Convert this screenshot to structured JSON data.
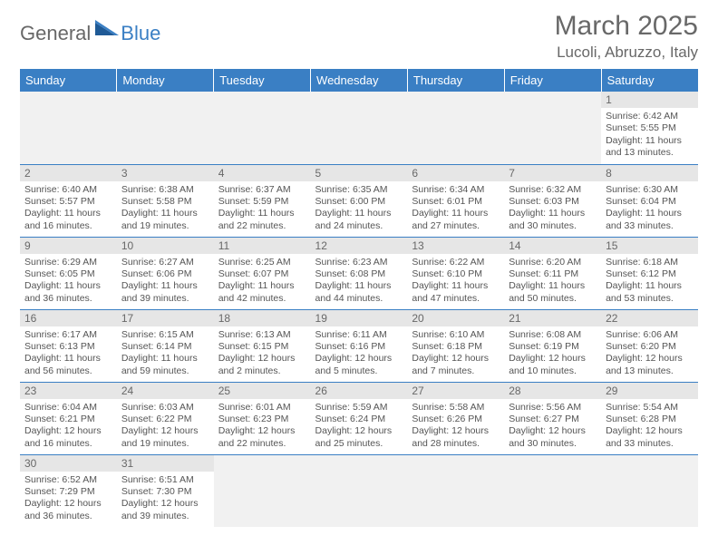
{
  "logo": {
    "general": "General",
    "blue": "Blue"
  },
  "title": "March 2025",
  "location": "Lucoli, Abruzzo, Italy",
  "colors": {
    "header_bg": "#3a7fc4",
    "daynum_bg": "#e6e6e6",
    "empty_bg": "#f1f1f1",
    "text_muted": "#686868"
  },
  "weekdays": [
    "Sunday",
    "Monday",
    "Tuesday",
    "Wednesday",
    "Thursday",
    "Friday",
    "Saturday"
  ],
  "weeks": [
    [
      null,
      null,
      null,
      null,
      null,
      null,
      {
        "n": "1",
        "sr": "Sunrise: 6:42 AM",
        "ss": "Sunset: 5:55 PM",
        "dl": "Daylight: 11 hours and 13 minutes."
      }
    ],
    [
      {
        "n": "2",
        "sr": "Sunrise: 6:40 AM",
        "ss": "Sunset: 5:57 PM",
        "dl": "Daylight: 11 hours and 16 minutes."
      },
      {
        "n": "3",
        "sr": "Sunrise: 6:38 AM",
        "ss": "Sunset: 5:58 PM",
        "dl": "Daylight: 11 hours and 19 minutes."
      },
      {
        "n": "4",
        "sr": "Sunrise: 6:37 AM",
        "ss": "Sunset: 5:59 PM",
        "dl": "Daylight: 11 hours and 22 minutes."
      },
      {
        "n": "5",
        "sr": "Sunrise: 6:35 AM",
        "ss": "Sunset: 6:00 PM",
        "dl": "Daylight: 11 hours and 24 minutes."
      },
      {
        "n": "6",
        "sr": "Sunrise: 6:34 AM",
        "ss": "Sunset: 6:01 PM",
        "dl": "Daylight: 11 hours and 27 minutes."
      },
      {
        "n": "7",
        "sr": "Sunrise: 6:32 AM",
        "ss": "Sunset: 6:03 PM",
        "dl": "Daylight: 11 hours and 30 minutes."
      },
      {
        "n": "8",
        "sr": "Sunrise: 6:30 AM",
        "ss": "Sunset: 6:04 PM",
        "dl": "Daylight: 11 hours and 33 minutes."
      }
    ],
    [
      {
        "n": "9",
        "sr": "Sunrise: 6:29 AM",
        "ss": "Sunset: 6:05 PM",
        "dl": "Daylight: 11 hours and 36 minutes."
      },
      {
        "n": "10",
        "sr": "Sunrise: 6:27 AM",
        "ss": "Sunset: 6:06 PM",
        "dl": "Daylight: 11 hours and 39 minutes."
      },
      {
        "n": "11",
        "sr": "Sunrise: 6:25 AM",
        "ss": "Sunset: 6:07 PM",
        "dl": "Daylight: 11 hours and 42 minutes."
      },
      {
        "n": "12",
        "sr": "Sunrise: 6:23 AM",
        "ss": "Sunset: 6:08 PM",
        "dl": "Daylight: 11 hours and 44 minutes."
      },
      {
        "n": "13",
        "sr": "Sunrise: 6:22 AM",
        "ss": "Sunset: 6:10 PM",
        "dl": "Daylight: 11 hours and 47 minutes."
      },
      {
        "n": "14",
        "sr": "Sunrise: 6:20 AM",
        "ss": "Sunset: 6:11 PM",
        "dl": "Daylight: 11 hours and 50 minutes."
      },
      {
        "n": "15",
        "sr": "Sunrise: 6:18 AM",
        "ss": "Sunset: 6:12 PM",
        "dl": "Daylight: 11 hours and 53 minutes."
      }
    ],
    [
      {
        "n": "16",
        "sr": "Sunrise: 6:17 AM",
        "ss": "Sunset: 6:13 PM",
        "dl": "Daylight: 11 hours and 56 minutes."
      },
      {
        "n": "17",
        "sr": "Sunrise: 6:15 AM",
        "ss": "Sunset: 6:14 PM",
        "dl": "Daylight: 11 hours and 59 minutes."
      },
      {
        "n": "18",
        "sr": "Sunrise: 6:13 AM",
        "ss": "Sunset: 6:15 PM",
        "dl": "Daylight: 12 hours and 2 minutes."
      },
      {
        "n": "19",
        "sr": "Sunrise: 6:11 AM",
        "ss": "Sunset: 6:16 PM",
        "dl": "Daylight: 12 hours and 5 minutes."
      },
      {
        "n": "20",
        "sr": "Sunrise: 6:10 AM",
        "ss": "Sunset: 6:18 PM",
        "dl": "Daylight: 12 hours and 7 minutes."
      },
      {
        "n": "21",
        "sr": "Sunrise: 6:08 AM",
        "ss": "Sunset: 6:19 PM",
        "dl": "Daylight: 12 hours and 10 minutes."
      },
      {
        "n": "22",
        "sr": "Sunrise: 6:06 AM",
        "ss": "Sunset: 6:20 PM",
        "dl": "Daylight: 12 hours and 13 minutes."
      }
    ],
    [
      {
        "n": "23",
        "sr": "Sunrise: 6:04 AM",
        "ss": "Sunset: 6:21 PM",
        "dl": "Daylight: 12 hours and 16 minutes."
      },
      {
        "n": "24",
        "sr": "Sunrise: 6:03 AM",
        "ss": "Sunset: 6:22 PM",
        "dl": "Daylight: 12 hours and 19 minutes."
      },
      {
        "n": "25",
        "sr": "Sunrise: 6:01 AM",
        "ss": "Sunset: 6:23 PM",
        "dl": "Daylight: 12 hours and 22 minutes."
      },
      {
        "n": "26",
        "sr": "Sunrise: 5:59 AM",
        "ss": "Sunset: 6:24 PM",
        "dl": "Daylight: 12 hours and 25 minutes."
      },
      {
        "n": "27",
        "sr": "Sunrise: 5:58 AM",
        "ss": "Sunset: 6:26 PM",
        "dl": "Daylight: 12 hours and 28 minutes."
      },
      {
        "n": "28",
        "sr": "Sunrise: 5:56 AM",
        "ss": "Sunset: 6:27 PM",
        "dl": "Daylight: 12 hours and 30 minutes."
      },
      {
        "n": "29",
        "sr": "Sunrise: 5:54 AM",
        "ss": "Sunset: 6:28 PM",
        "dl": "Daylight: 12 hours and 33 minutes."
      }
    ],
    [
      {
        "n": "30",
        "sr": "Sunrise: 6:52 AM",
        "ss": "Sunset: 7:29 PM",
        "dl": "Daylight: 12 hours and 36 minutes."
      },
      {
        "n": "31",
        "sr": "Sunrise: 6:51 AM",
        "ss": "Sunset: 7:30 PM",
        "dl": "Daylight: 12 hours and 39 minutes."
      },
      null,
      null,
      null,
      null,
      null
    ]
  ]
}
